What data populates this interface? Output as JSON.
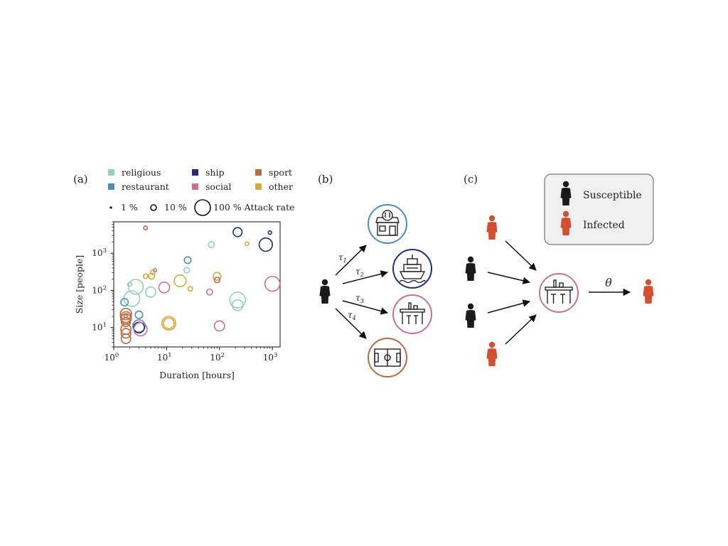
{
  "panels": {
    "a": {
      "label": "(a)"
    },
    "b": {
      "label": "(b)"
    },
    "c": {
      "label": "(c)"
    }
  },
  "legend": {
    "categories": [
      {
        "name": "religious",
        "color": "#8fd2bd"
      },
      {
        "name": "ship",
        "color": "#1f2d7a"
      },
      {
        "name": "sport",
        "color": "#c0683c"
      },
      {
        "name": "restaurant",
        "color": "#4a8fc0"
      },
      {
        "name": "social",
        "color": "#cd6f8e"
      },
      {
        "name": "other",
        "color": "#d9a93a"
      }
    ],
    "sizes": [
      {
        "label": "1 %",
        "rate": 1
      },
      {
        "label": "10 %",
        "rate": 10
      },
      {
        "label": "100 % Attack rate",
        "rate": 100
      }
    ]
  },
  "chart_data": {
    "type": "scatter",
    "xlabel": "Duration [hours]",
    "ylabel": "Size [people]",
    "xscale": "log",
    "yscale": "log",
    "xlim": [
      1,
      1400
    ],
    "ylim": [
      3,
      7000
    ],
    "xticks": [
      {
        "value": 1,
        "base": "10",
        "exp": "0"
      },
      {
        "value": 10,
        "base": "10",
        "exp": "1"
      },
      {
        "value": 100,
        "base": "10",
        "exp": "2"
      },
      {
        "value": 1000,
        "base": "10",
        "exp": "3"
      }
    ],
    "yticks": [
      {
        "value": 10,
        "base": "10",
        "exp": "1"
      },
      {
        "value": 100,
        "base": "10",
        "exp": "2"
      },
      {
        "value": 1000,
        "base": "10",
        "exp": "3"
      }
    ],
    "points": [
      {
        "category": "sport",
        "x": 4,
        "y": 4800,
        "attack": 4
      },
      {
        "category": "ship",
        "x": 220,
        "y": 3700,
        "attack": 30
      },
      {
        "category": "ship",
        "x": 900,
        "y": 3600,
        "attack": 3
      },
      {
        "category": "ship",
        "x": 750,
        "y": 1700,
        "attack": 70
      },
      {
        "category": "religious",
        "x": 70,
        "y": 1700,
        "attack": 12
      },
      {
        "category": "other",
        "x": 330,
        "y": 1800,
        "attack": 4
      },
      {
        "category": "restaurant",
        "x": 25,
        "y": 650,
        "attack": 16
      },
      {
        "category": "religious",
        "x": 24,
        "y": 350,
        "attack": 10
      },
      {
        "category": "social",
        "x": 6,
        "y": 350,
        "attack": 3
      },
      {
        "category": "other",
        "x": 5.5,
        "y": 310,
        "attack": 6
      },
      {
        "category": "other",
        "x": 4,
        "y": 240,
        "attack": 6
      },
      {
        "category": "other",
        "x": 5.2,
        "y": 240,
        "attack": 12
      },
      {
        "category": "other",
        "x": 90,
        "y": 240,
        "attack": 22
      },
      {
        "category": "sport",
        "x": 90,
        "y": 190,
        "attack": 10
      },
      {
        "category": "other",
        "x": 18,
        "y": 180,
        "attack": 55
      },
      {
        "category": "social",
        "x": 1000,
        "y": 150,
        "attack": 90
      },
      {
        "category": "religious",
        "x": 2,
        "y": 145,
        "attack": 5
      },
      {
        "category": "religious",
        "x": 2.6,
        "y": 125,
        "attack": 90
      },
      {
        "category": "social",
        "x": 9,
        "y": 120,
        "attack": 45
      },
      {
        "category": "other",
        "x": 28,
        "y": 110,
        "attack": 6
      },
      {
        "category": "religious",
        "x": 5,
        "y": 90,
        "attack": 40
      },
      {
        "category": "social",
        "x": 65,
        "y": 90,
        "attack": 12
      },
      {
        "category": "religious",
        "x": 2.2,
        "y": 60,
        "attack": 100
      },
      {
        "category": "religious",
        "x": 220,
        "y": 55,
        "attack": 100
      },
      {
        "category": "religious",
        "x": 220,
        "y": 40,
        "attack": 45
      },
      {
        "category": "restaurant",
        "x": 1.6,
        "y": 48,
        "attack": 20
      },
      {
        "category": "restaurant",
        "x": 3,
        "y": 22,
        "attack": 20
      },
      {
        "category": "sport",
        "x": 1.7,
        "y": 23,
        "attack": 50
      },
      {
        "category": "sport",
        "x": 1.7,
        "y": 19,
        "attack": 45
      },
      {
        "category": "sport",
        "x": 1.7,
        "y": 17,
        "attack": 40
      },
      {
        "category": "sport",
        "x": 1.7,
        "y": 14,
        "attack": 30
      },
      {
        "category": "other",
        "x": 11,
        "y": 13,
        "attack": 75
      },
      {
        "category": "other",
        "x": 11,
        "y": 13,
        "attack": 45
      },
      {
        "category": "restaurant",
        "x": 3,
        "y": 11,
        "attack": 60
      },
      {
        "category": "ship",
        "x": 3,
        "y": 10,
        "attack": 45
      },
      {
        "category": "social",
        "x": 3.2,
        "y": 9,
        "attack": 70
      },
      {
        "category": "social",
        "x": 100,
        "y": 11,
        "attack": 40
      },
      {
        "category": "sport",
        "x": 1.7,
        "y": 9,
        "attack": 40
      },
      {
        "category": "sport",
        "x": 1.7,
        "y": 7,
        "attack": 35
      },
      {
        "category": "sport",
        "x": 1.7,
        "y": 5,
        "attack": 35
      },
      {
        "category": "sport",
        "x": 1.7,
        "y": 20,
        "attack": 3
      }
    ]
  },
  "panel_b": {
    "edges": [
      {
        "symbol": "τ",
        "sub": "1"
      },
      {
        "symbol": "τ",
        "sub": "2"
      },
      {
        "symbol": "τ",
        "sub": "3"
      },
      {
        "symbol": "τ",
        "sub": "4"
      }
    ],
    "nodes": [
      {
        "kind": "restaurant",
        "color": "#4a8fc0"
      },
      {
        "kind": "ship",
        "color": "#1f2d7a"
      },
      {
        "kind": "bar",
        "color": "#cd6f8e"
      },
      {
        "kind": "sport-field",
        "color": "#c0683c"
      }
    ]
  },
  "panel_c": {
    "key": {
      "susceptible": "Susceptible",
      "infected": "Infected"
    },
    "susceptible_color": "#1a1a1a",
    "infected_color": "#d34f2f",
    "venue_color": "#cd6f8e",
    "rate_label": "θ"
  }
}
